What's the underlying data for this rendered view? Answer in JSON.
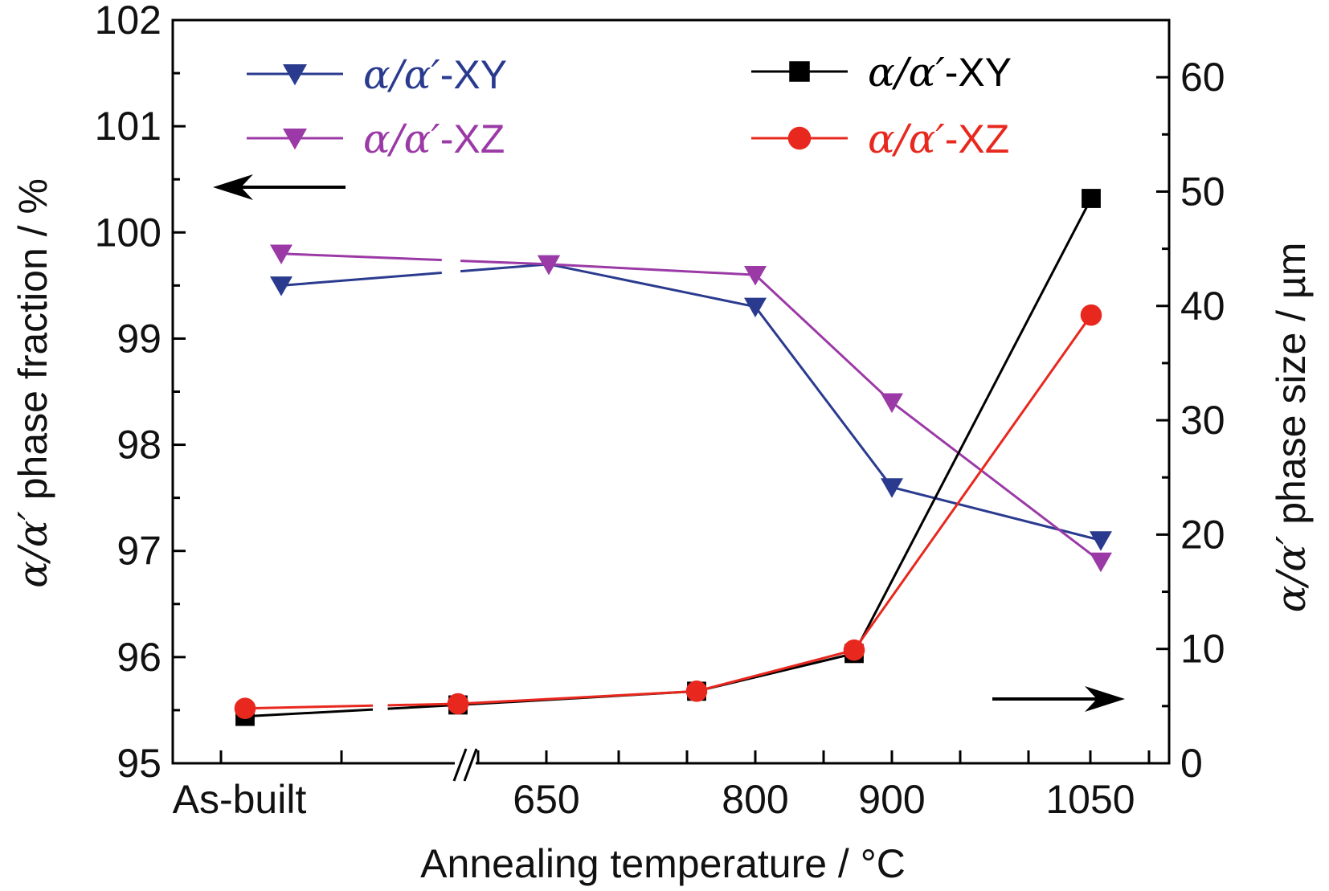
{
  "chart_data": {
    "type": "line",
    "xlabel": "Annealing temperature / °C",
    "x_tick_labels": [
      "As-built",
      "650",
      "800",
      "900",
      "1050"
    ],
    "y_left": {
      "label_prefix": "α/α′",
      "label_suffix": " phase fraction / %",
      "range": [
        95,
        102
      ],
      "ticks": [
        "95",
        "96",
        "97",
        "98",
        "99",
        "100",
        "101",
        "102"
      ]
    },
    "y_right": {
      "label_prefix": "α/α′",
      "label_suffix": " phase size / µm",
      "range": [
        0,
        65
      ],
      "ticks": [
        "0",
        "10",
        "20",
        "30",
        "40",
        "50",
        "60"
      ]
    },
    "x": [
      "As-built",
      "650",
      "800",
      "900",
      "1050"
    ],
    "fraction_series": [
      {
        "name": "α/α′-XY",
        "name_greek": "α/α′",
        "name_rest": "-XY",
        "axis": "left",
        "color": "#2a3b8f",
        "marker": "triangle-down",
        "values": [
          99.5,
          99.7,
          99.3,
          97.6,
          97.1
        ]
      },
      {
        "name": "α/α′-XZ",
        "name_greek": "α/α′",
        "name_rest": "-XZ",
        "axis": "left",
        "color": "#9b3aa6",
        "marker": "triangle-down",
        "values": [
          99.8,
          99.7,
          99.6,
          98.4,
          96.9
        ]
      }
    ],
    "size_series": [
      {
        "name": "α/α′-XY",
        "name_greek": "α/α′",
        "name_rest": "-XY",
        "axis": "right",
        "color": "#000000",
        "marker": "square",
        "values": [
          4.1,
          5.1,
          6.3,
          9.6,
          49.4
        ]
      },
      {
        "name": "α/α′-XZ",
        "name_greek": "α/α′",
        "name_rest": "-XZ",
        "axis": "right",
        "color": "#e8281e",
        "marker": "circle",
        "values": [
          4.8,
          5.2,
          6.3,
          9.9,
          39.2
        ]
      }
    ],
    "legend_position": "top"
  }
}
